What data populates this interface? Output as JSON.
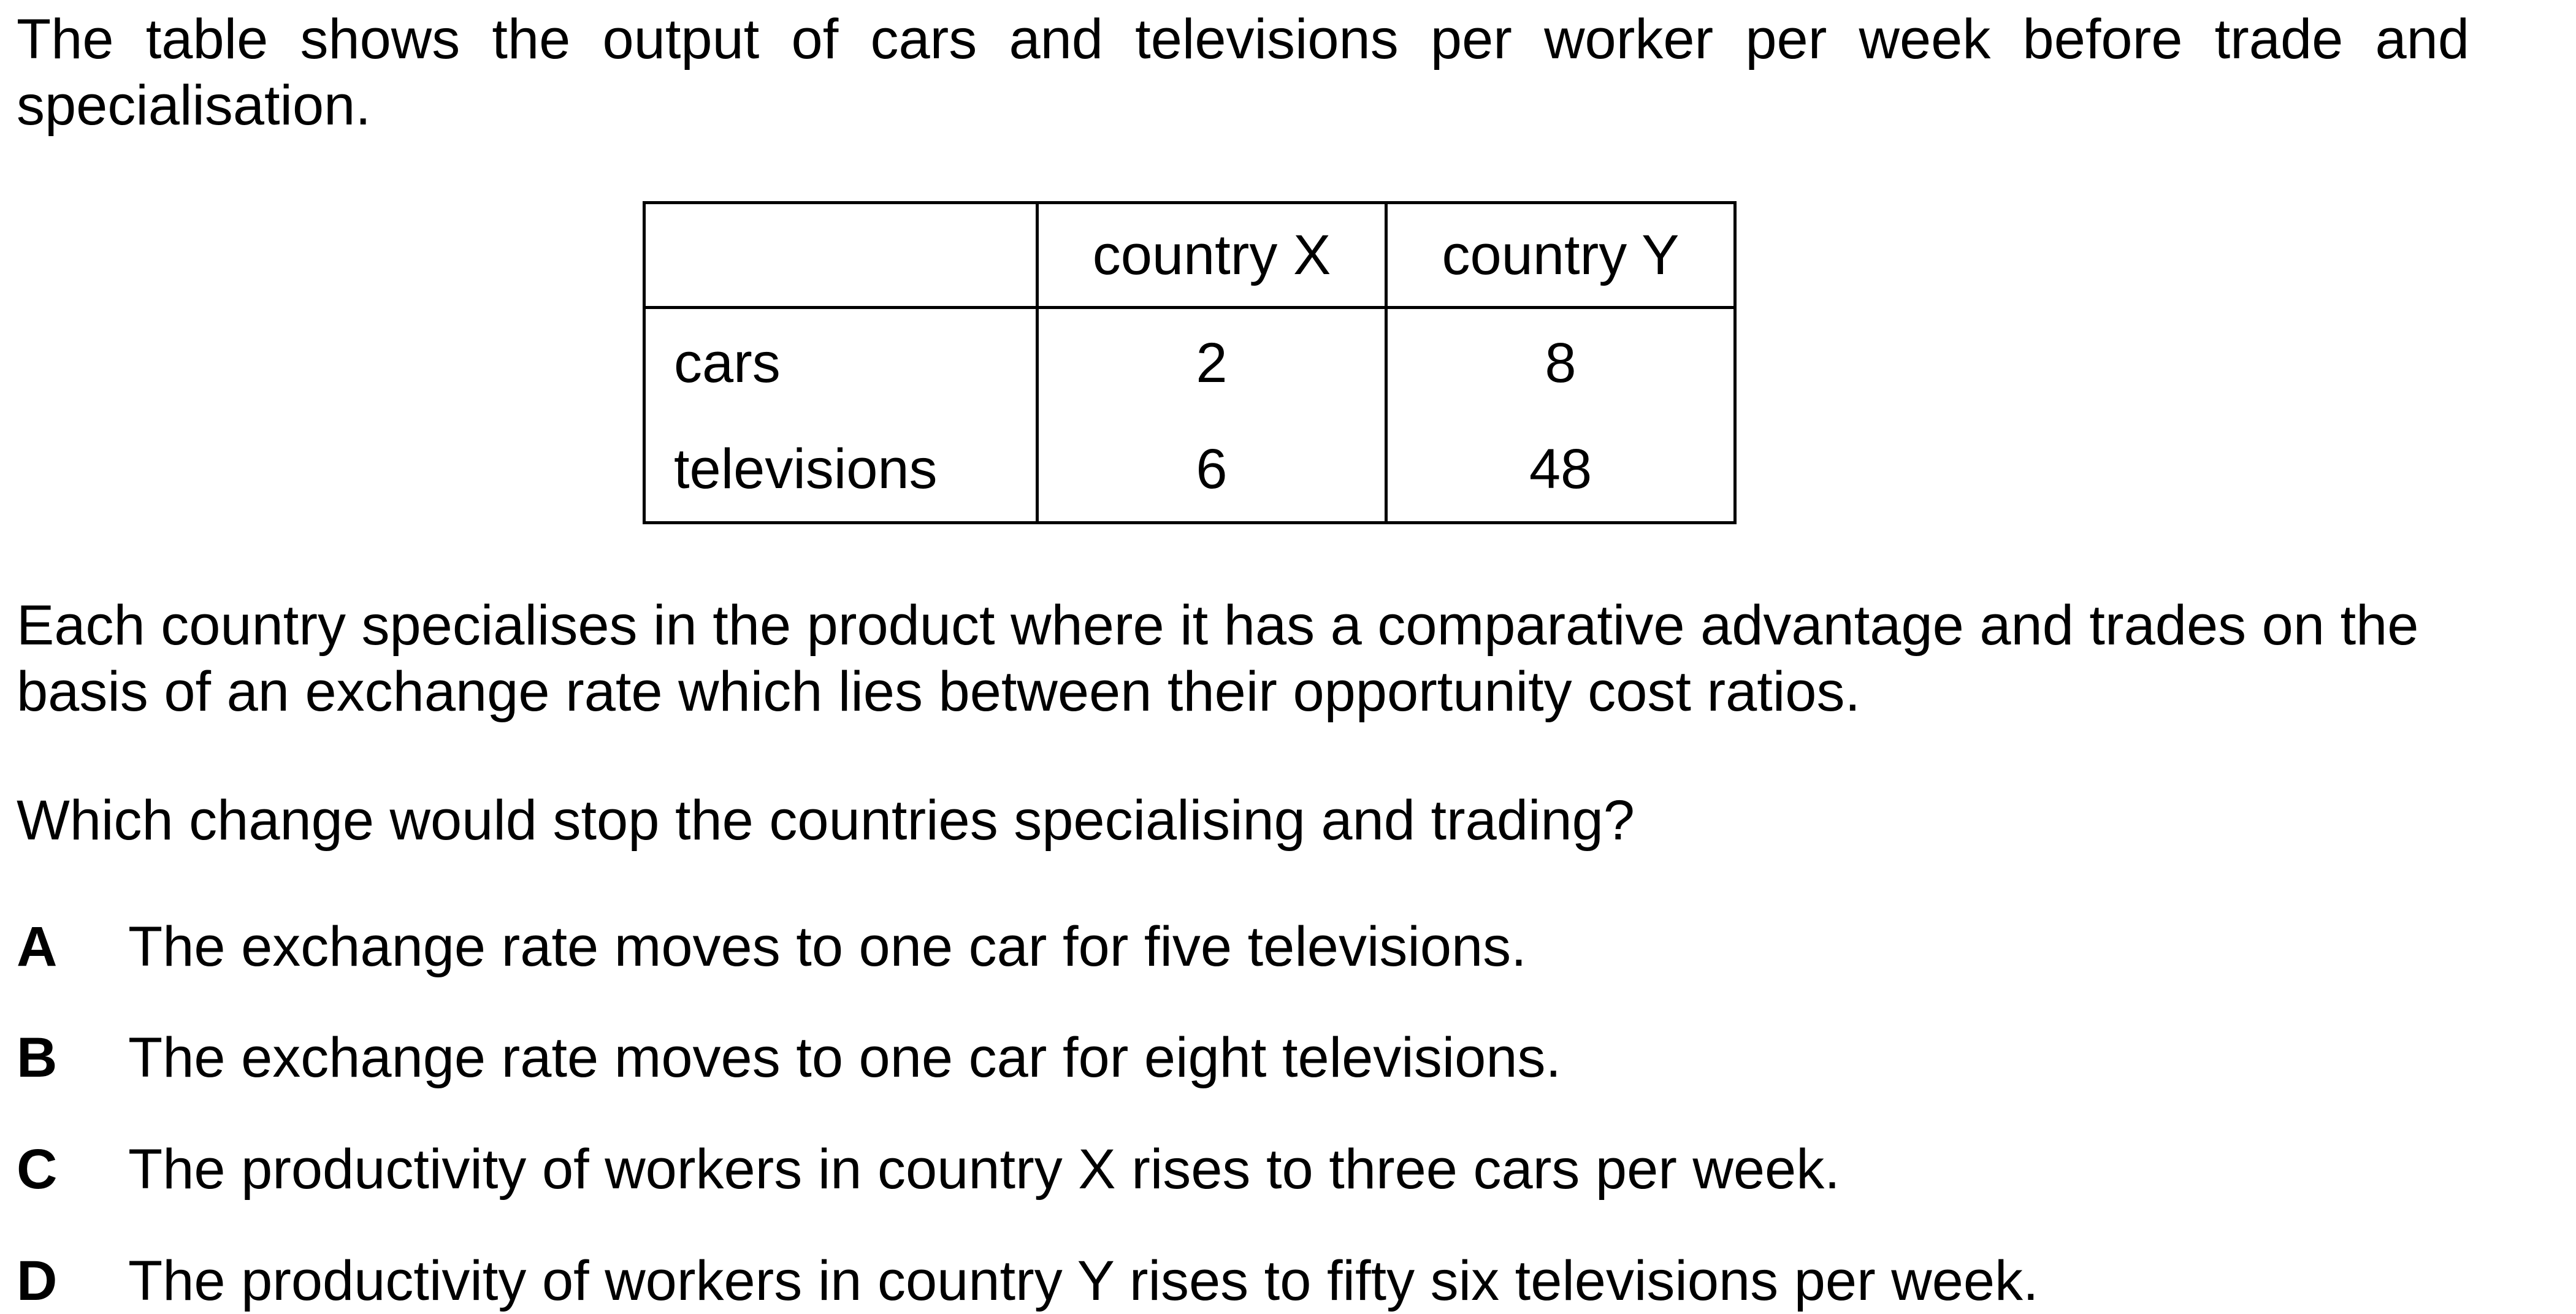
{
  "intro": {
    "line1": "The table shows the output of cars and televisions per worker per week before trade and",
    "line2": "specialisation."
  },
  "table": {
    "headers": [
      "",
      "country X",
      "country Y"
    ],
    "rows": [
      {
        "label": "cars",
        "x": "2",
        "y": "8"
      },
      {
        "label": "televisions",
        "x": "6",
        "y": "48"
      }
    ]
  },
  "paragraph2": {
    "line1": "Each country specialises in the product where it has a comparative advantage and trades on the",
    "line2": "basis of an exchange rate which lies between their opportunity cost ratios."
  },
  "question": "Which change would stop the countries specialising and trading?",
  "options": [
    {
      "letter": "A",
      "text": "The exchange rate moves to one car for five televisions."
    },
    {
      "letter": "B",
      "text": "The exchange rate moves to one car for eight televisions."
    },
    {
      "letter": "C",
      "text": "The productivity of workers in country X rises to three cars per week."
    },
    {
      "letter": "D",
      "text": "The productivity of workers in country Y rises to fifty six televisions per week."
    }
  ]
}
